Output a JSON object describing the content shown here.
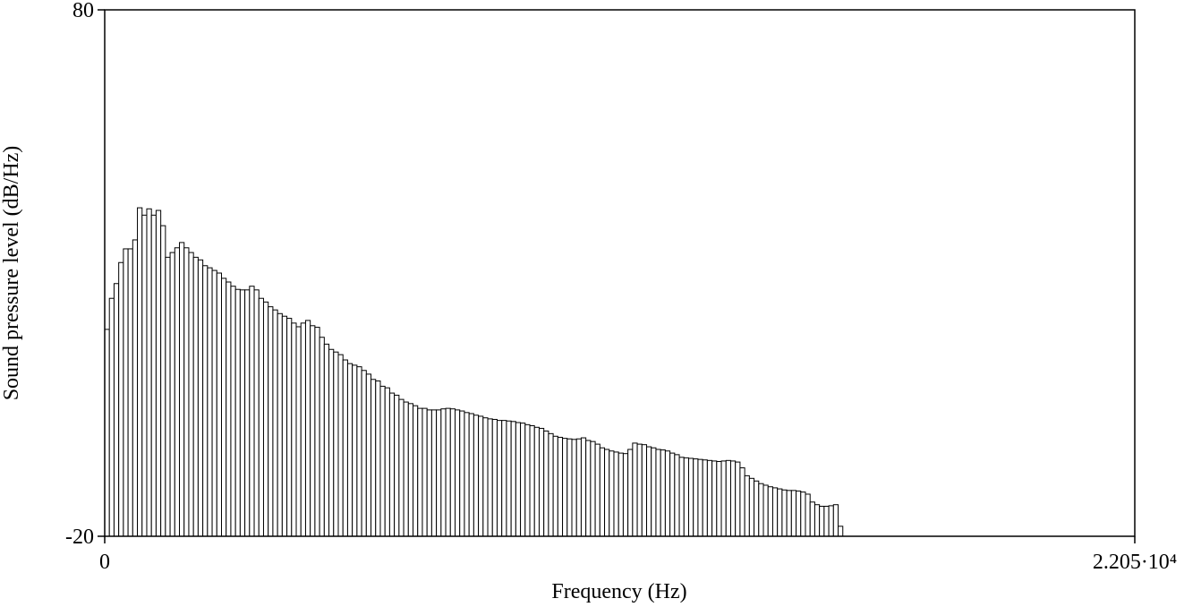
{
  "chart_data": {
    "type": "histogram",
    "xlabel": "Frequency (Hz)",
    "ylabel": "Sound pressure level (dB/Hz)",
    "xlim": [
      0,
      22050
    ],
    "ylim": [
      -20,
      80
    ],
    "xticks": [
      0,
      {
        "value": 22050,
        "label": "2.205·10⁴"
      }
    ],
    "yticks": [
      80,
      -20
    ],
    "color": "#ffffff",
    "bins": [
      0,
      100,
      200,
      300,
      400,
      500,
      600,
      700,
      800,
      900,
      1000,
      1100,
      1200,
      1300,
      1400,
      1500,
      1600,
      1700,
      1800,
      1900,
      2000,
      2100,
      2200,
      2300,
      2400,
      2500,
      2600,
      2700,
      2800,
      2900,
      3000,
      3100,
      3200,
      3300,
      3400,
      3500,
      3600,
      3700,
      3800,
      3900,
      4000,
      4100,
      4200,
      4300,
      4400,
      4500,
      4600,
      4700,
      4800,
      4900,
      5000,
      5100,
      5200,
      5300,
      5400,
      5500,
      5600,
      5700,
      5800,
      5900,
      6000,
      6100,
      6200,
      6300,
      6400,
      6500,
      6600,
      6700,
      6800,
      6900,
      7000,
      7100,
      7200,
      7300,
      7400,
      7500,
      7600,
      7700,
      7800,
      7900,
      8000,
      8100,
      8200,
      8300,
      8400,
      8500,
      8600,
      8700,
      8800,
      8900,
      9000,
      9100,
      9200,
      9300,
      9400,
      9500,
      9600,
      9700,
      9800,
      9900,
      10000,
      10100,
      10200,
      10300,
      10400,
      10500,
      10600,
      10700,
      10800,
      10900,
      11000,
      11100,
      11200,
      11300,
      11400,
      11500,
      11600,
      11700,
      11800,
      11900,
      12000,
      12100,
      12200,
      12300,
      12400,
      12500,
      12600,
      12700,
      12800,
      12900,
      13000,
      13100,
      13200,
      13300,
      13400,
      13500,
      13600,
      13700,
      13800,
      13900,
      14000,
      14100,
      14200,
      14300,
      14400,
      14500,
      14600,
      14700,
      14800,
      14900,
      15000,
      15100,
      15200,
      15300,
      15400,
      15500,
      15600,
      15700,
      15800
    ],
    "values": [
      19.3,
      25.2,
      28,
      32,
      34.6,
      34.6,
      36.3,
      42.4,
      41,
      42.2,
      41,
      41.9,
      39,
      33,
      33.9,
      34.8,
      35.8,
      34.8,
      33.9,
      33,
      32.5,
      31.4,
      31,
      30.5,
      30,
      29,
      28.3,
      27.5,
      26.9,
      26.8,
      26.8,
      27.5,
      26.8,
      25.2,
      24.5,
      23.6,
      23,
      22.3,
      21.8,
      21.4,
      20.5,
      19.8,
      20.5,
      21,
      20,
      19.7,
      17.8,
      16.5,
      15.5,
      15,
      14.5,
      13.5,
      12.8,
      12.5,
      12.2,
      11.5,
      10.8,
      9.8,
      9.5,
      8.5,
      8.2,
      7.2,
      6.8,
      6,
      5.5,
      5.2,
      4.8,
      4.3,
      4.3,
      4,
      4,
      4,
      4.2,
      4.3,
      4.2,
      4,
      3.8,
      3.5,
      3.3,
      3,
      2.8,
      2.5,
      2.3,
      2.2,
      2,
      2,
      1.9,
      1.8,
      1.6,
      1.5,
      1.2,
      1,
      0.7,
      0.5,
      0,
      -0.5,
      -1,
      -1.2,
      -1.4,
      -1.5,
      -1.6,
      -1.5,
      -1.3,
      -1.8,
      -2,
      -2.5,
      -3.2,
      -3.5,
      -3.8,
      -4,
      -4.2,
      -4.3,
      -3.5,
      -2.3,
      -2.5,
      -2.6,
      -3,
      -3.2,
      -3.5,
      -3.6,
      -3.8,
      -4.2,
      -4.5,
      -5,
      -5.1,
      -5.2,
      -5.3,
      -5.4,
      -5.5,
      -5.6,
      -5.7,
      -5.8,
      -5.7,
      -5.6,
      -5.7,
      -5.9,
      -7,
      -8.5,
      -9,
      -9.5,
      -10,
      -10.3,
      -10.6,
      -10.8,
      -11,
      -11.2,
      -11.3,
      -11.3,
      -11.4,
      -11.6,
      -12,
      -13.5,
      -14,
      -14.3,
      -14.3,
      -14.2,
      -14,
      -18.1
    ]
  }
}
